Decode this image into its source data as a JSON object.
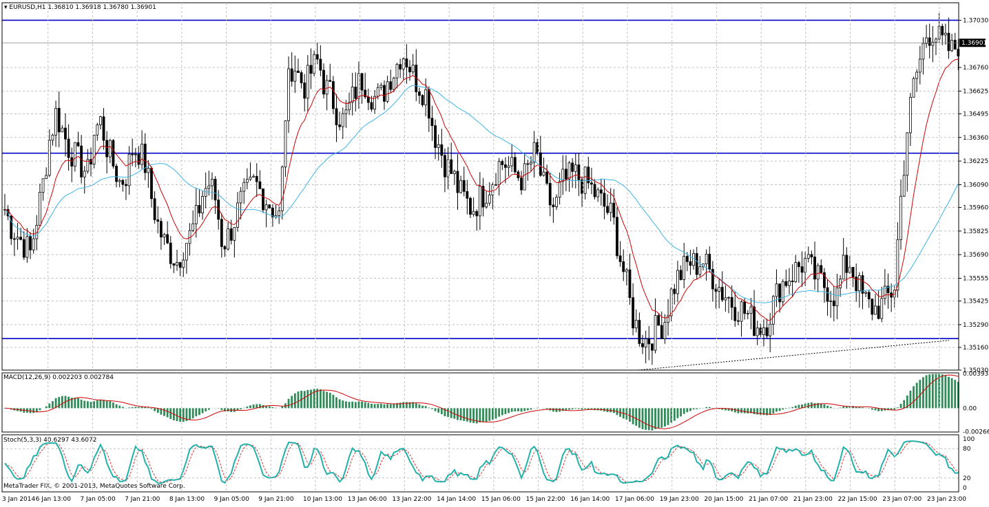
{
  "chart_data": [
    {
      "type": "candlestick",
      "title": "EURUSD,H1",
      "ohlc_header": [
        "1.36810",
        "1.36918",
        "1.36780",
        "1.36901"
      ],
      "current_price": "1.36901",
      "price_ticks": [
        "1.37030",
        "1.36760",
        "1.36625",
        "1.36495",
        "1.36360",
        "1.36225",
        "1.36090",
        "1.35960",
        "1.35825",
        "1.35690",
        "1.35555",
        "1.35425",
        "1.35290",
        "1.35160",
        "1.35030"
      ],
      "ylim": [
        1.3503,
        1.3713
      ],
      "horizontal_lines": [
        1.3703,
        1.3627,
        1.3521
      ],
      "trendline": {
        "from": [
          0.665,
          1.3503
        ],
        "to": [
          0.99,
          1.352
        ]
      },
      "key_closes": [
        1.3595,
        1.3585,
        1.358,
        1.3575,
        1.357,
        1.359,
        1.361,
        1.3635,
        1.365,
        1.364,
        1.363,
        1.3625,
        1.362,
        1.3615,
        1.364,
        1.3645,
        1.363,
        1.362,
        1.361,
        1.3615,
        1.363,
        1.3628,
        1.362,
        1.36,
        1.3585,
        1.3575,
        1.357,
        1.3565,
        1.3575,
        1.358,
        1.359,
        1.3605,
        1.361,
        1.36,
        1.3575,
        1.358,
        1.359,
        1.36,
        1.3605,
        1.361,
        1.3605,
        1.36,
        1.3595,
        1.359,
        1.366,
        1.368,
        1.367,
        1.3665,
        1.3675,
        1.368,
        1.3665,
        1.366,
        1.365,
        1.3645,
        1.3655,
        1.3665,
        1.367,
        1.3662,
        1.3658,
        1.366,
        1.367,
        1.3675,
        1.3685,
        1.368,
        1.367,
        1.3665,
        1.366,
        1.364,
        1.363,
        1.362,
        1.3615,
        1.3605,
        1.36,
        1.3595,
        1.36,
        1.3605,
        1.361,
        1.362,
        1.3622,
        1.3618,
        1.3615,
        1.3612,
        1.362,
        1.3628,
        1.361,
        1.36,
        1.3595,
        1.361,
        1.3612,
        1.3615,
        1.3612,
        1.361,
        1.3605,
        1.36,
        1.3595,
        1.359,
        1.357,
        1.3555,
        1.3535,
        1.3525,
        1.352,
        1.3522,
        1.3528,
        1.353,
        1.3545,
        1.3555,
        1.356,
        1.3565,
        1.3563,
        1.3566,
        1.356,
        1.3555,
        1.3548,
        1.3545,
        1.354,
        1.3538,
        1.3535,
        1.353,
        1.3528,
        1.353,
        1.354,
        1.355,
        1.3555,
        1.3558,
        1.3562,
        1.3565,
        1.356,
        1.3555,
        1.3552,
        1.3548,
        1.3545,
        1.356,
        1.3565,
        1.3555,
        1.3545,
        1.354,
        1.3538,
        1.354,
        1.3545,
        1.355,
        1.36,
        1.364,
        1.3665,
        1.368,
        1.3695,
        1.3697,
        1.3692,
        1.3688,
        1.3685,
        1.369
      ]
    },
    {
      "type": "histogram",
      "title": "MACD(12,26,9) 0.002203 0.002784",
      "y_ticks": [
        "0.003933",
        "0.00",
        "-0.002668"
      ],
      "ylim": [
        -0.0027,
        0.004
      ]
    },
    {
      "type": "line",
      "title": "Stoch(5,3,3) 40.6297 43.6072",
      "y_ticks": [
        "100",
        "80",
        "20",
        "0"
      ],
      "ylim": [
        0,
        100
      ]
    }
  ],
  "x_ticks": [
    "3 Jan 2014",
    "6 Jan 13:00",
    "7 Jan 05:00",
    "7 Jan 21:00",
    "8 Jan 13:00",
    "9 Jan 05:00",
    "9 Jan 21:00",
    "10 Jan 13:00",
    "13 Jan 06:00",
    "13 Jan 22:00",
    "14 Jan 14:00",
    "15 Jan 06:00",
    "15 Jan 22:00",
    "16 Jan 14:00",
    "17 Jan 06:00",
    "19 Jan 23:00",
    "20 Jan 15:00",
    "21 Jan 07:00",
    "21 Jan 23:00",
    "22 Jan 15:00",
    "23 Jan 07:00",
    "23 Jan 23:00"
  ],
  "copyright": "MetaTrader FIX, © 2001-2013, MetaQuotes Software Corp.",
  "colors": {
    "background": "#ffffff",
    "grid": "#c0c0c0",
    "level_line": "#0000c8",
    "ma_fast": "#d00000",
    "ma_slow": "#3cb4e6",
    "macd_hist": "#2e8b57",
    "macd_signal": "#d00000",
    "stoch_main": "#20b2aa",
    "stoch_signal": "#d00000",
    "candle": "#000000"
  }
}
